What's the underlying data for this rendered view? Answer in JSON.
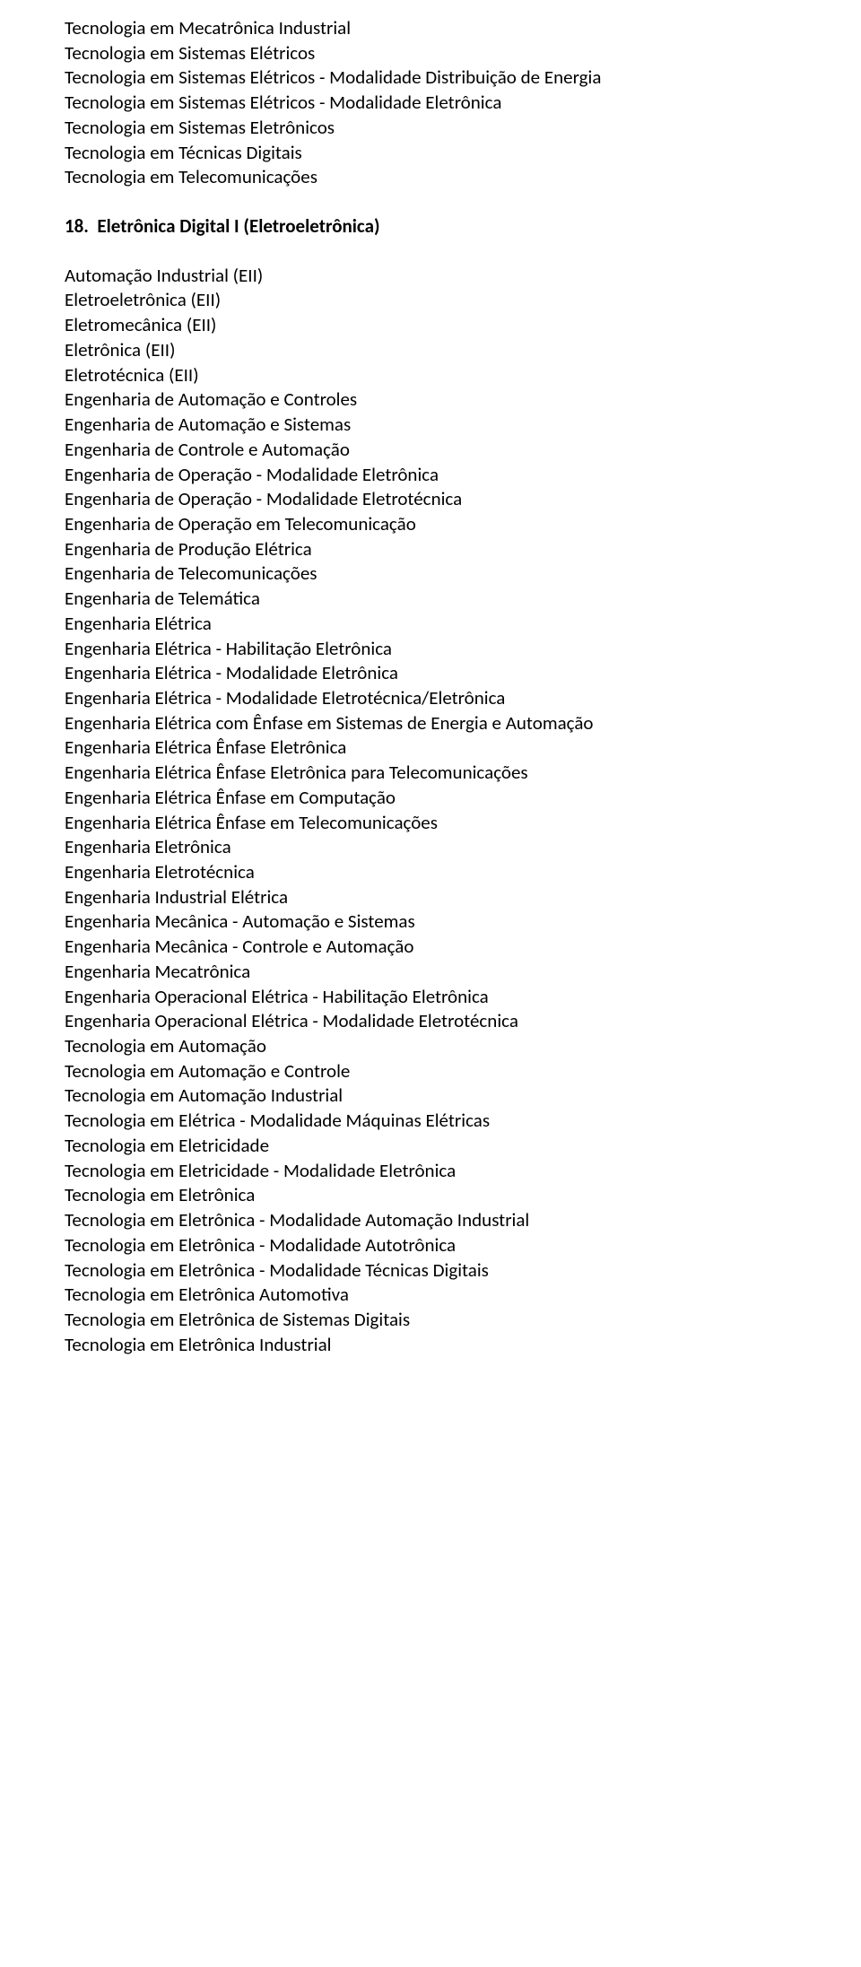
{
  "top_block": [
    "Tecnologia em Mecatrônica Industrial",
    "Tecnologia em Sistemas Elétricos",
    "Tecnologia em Sistemas Elétricos - Modalidade Distribuição de Energia",
    "Tecnologia em Sistemas Elétricos - Modalidade Eletrônica",
    "Tecnologia em Sistemas Eletrônicos",
    "Tecnologia em Técnicas Digitais",
    "Tecnologia em Telecomunicações"
  ],
  "heading": "18.  Eletrônica Digital I (Eletroeletrônica)",
  "main_block": [
    "Automação Industrial (EII)",
    "Eletroeletrônica (EII)",
    "Eletromecânica (EII)",
    "Eletrônica (EII)",
    "Eletrotécnica (EII)",
    "Engenharia de Automação e Controles",
    "Engenharia de Automação e Sistemas",
    "Engenharia de Controle e Automação",
    "Engenharia de Operação - Modalidade Eletrônica",
    "Engenharia de Operação - Modalidade Eletrotécnica",
    "Engenharia de Operação em Telecomunicação",
    "Engenharia de Produção Elétrica",
    "Engenharia de Telecomunicações",
    "Engenharia de Telemática",
    "Engenharia Elétrica",
    "Engenharia Elétrica - Habilitação Eletrônica",
    "Engenharia Elétrica - Modalidade Eletrônica",
    "Engenharia Elétrica - Modalidade Eletrotécnica/Eletrônica",
    "Engenharia Elétrica com Ênfase em Sistemas de Energia e Automação",
    "Engenharia Elétrica Ênfase Eletrônica",
    "Engenharia Elétrica Ênfase Eletrônica para Telecomunicações",
    "Engenharia Elétrica Ênfase em Computação",
    "Engenharia Elétrica Ênfase em Telecomunicações",
    "Engenharia Eletrônica",
    "Engenharia Eletrotécnica",
    "Engenharia Industrial Elétrica",
    "Engenharia Mecânica - Automação e Sistemas",
    "Engenharia Mecânica - Controle e Automação",
    "Engenharia Mecatrônica",
    "Engenharia Operacional Elétrica - Habilitação Eletrônica",
    "Engenharia Operacional Elétrica - Modalidade Eletrotécnica",
    "Tecnologia em Automação",
    "Tecnologia em Automação e Controle",
    "Tecnologia em Automação Industrial",
    "Tecnologia em Elétrica - Modalidade Máquinas Elétricas",
    "Tecnologia em Eletricidade",
    "Tecnologia em Eletricidade - Modalidade Eletrônica",
    "Tecnologia em Eletrônica",
    "Tecnologia em Eletrônica - Modalidade Automação Industrial",
    "Tecnologia em Eletrônica - Modalidade Autotrônica",
    "Tecnologia em Eletrônica - Modalidade Técnicas Digitais",
    "Tecnologia em Eletrônica Automotiva",
    "Tecnologia em Eletrônica de Sistemas Digitais",
    "Tecnologia em Eletrônica Industrial"
  ]
}
